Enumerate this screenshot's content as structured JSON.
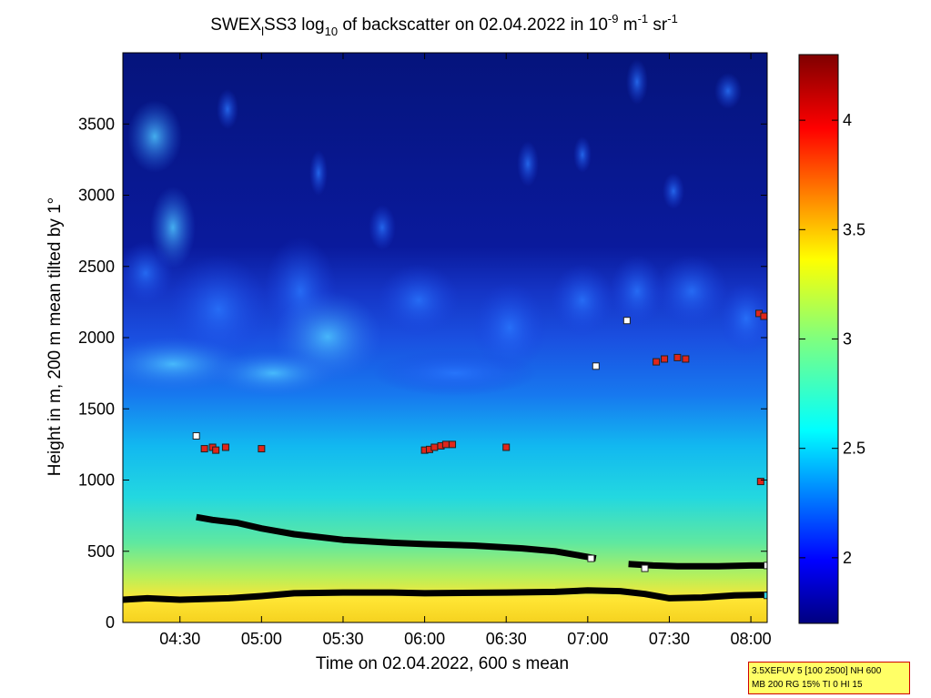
{
  "chart_data": {
    "type": "heatmap",
    "title_parts": {
      "pre": "SWEX",
      "sub1": "l",
      "mid": "SS3 log",
      "sub2": "10",
      "post": " of backscatter on 02.04.2022 in 10",
      "sup1": "-9",
      "unit_m": " m",
      "sup2": "-1",
      "unit_sr": " sr",
      "sup3": "-1"
    },
    "xlabel": "Time on 02.04.2022, 600 s mean",
    "ylabel": "Height in m, 200 m mean tilted by 1°",
    "x_range_hours": [
      4.15,
      8.1
    ],
    "ylim": [
      0,
      4000
    ],
    "x_ticks": [
      {
        "label": "04:30",
        "value": 4.5
      },
      {
        "label": "05:00",
        "value": 5.0
      },
      {
        "label": "05:30",
        "value": 5.5
      },
      {
        "label": "06:00",
        "value": 6.0
      },
      {
        "label": "06:30",
        "value": 6.5
      },
      {
        "label": "07:00",
        "value": 7.0
      },
      {
        "label": "07:30",
        "value": 7.5
      },
      {
        "label": "08:00",
        "value": 8.0
      }
    ],
    "y_ticks": [
      {
        "label": "0",
        "value": 0
      },
      {
        "label": "500",
        "value": 500
      },
      {
        "label": "1000",
        "value": 1000
      },
      {
        "label": "1500",
        "value": 1500
      },
      {
        "label": "2000",
        "value": 2000
      },
      {
        "label": "2500",
        "value": 2500
      },
      {
        "label": "3000",
        "value": 3000
      },
      {
        "label": "3500",
        "value": 3500
      }
    ],
    "colorbar": {
      "range": [
        1.7,
        4.3
      ],
      "ticks": [
        {
          "label": "2",
          "value": 2.0
        },
        {
          "label": "2.5",
          "value": 2.5
        },
        {
          "label": "3",
          "value": 3.0
        },
        {
          "label": "3.5",
          "value": 3.5
        },
        {
          "label": "4",
          "value": 4.0
        }
      ]
    },
    "layer_lines": [
      {
        "name": "surface",
        "points": [
          [
            4.15,
            160
          ],
          [
            4.3,
            170
          ],
          [
            4.5,
            160
          ],
          [
            4.8,
            170
          ],
          [
            5.0,
            185
          ],
          [
            5.2,
            205
          ],
          [
            5.5,
            210
          ],
          [
            5.8,
            210
          ],
          [
            6.0,
            205
          ],
          [
            6.5,
            210
          ],
          [
            6.8,
            215
          ],
          [
            7.0,
            225
          ],
          [
            7.2,
            220
          ],
          [
            7.35,
            200
          ],
          [
            7.5,
            170
          ],
          [
            7.7,
            175
          ],
          [
            7.9,
            190
          ],
          [
            8.1,
            195
          ]
        ]
      },
      {
        "name": "upper-segment-1",
        "points": [
          [
            4.6,
            740
          ],
          [
            4.7,
            720
          ],
          [
            4.85,
            700
          ],
          [
            5.0,
            660
          ],
          [
            5.2,
            620
          ],
          [
            5.5,
            580
          ],
          [
            5.8,
            560
          ],
          [
            6.0,
            550
          ],
          [
            6.3,
            540
          ],
          [
            6.6,
            520
          ],
          [
            6.8,
            500
          ],
          [
            6.95,
            470
          ],
          [
            7.05,
            450
          ]
        ]
      },
      {
        "name": "upper-segment-2",
        "points": [
          [
            7.25,
            410
          ],
          [
            7.4,
            400
          ],
          [
            7.55,
            395
          ],
          [
            7.8,
            395
          ],
          [
            8.0,
            400
          ],
          [
            8.1,
            400
          ]
        ]
      }
    ],
    "red_markers": [
      [
        4.65,
        1220
      ],
      [
        4.7,
        1230
      ],
      [
        4.72,
        1210
      ],
      [
        4.78,
        1230
      ],
      [
        5.0,
        1220
      ],
      [
        6.0,
        1210
      ],
      [
        6.03,
        1215
      ],
      [
        6.06,
        1230
      ],
      [
        6.1,
        1240
      ],
      [
        6.13,
        1250
      ],
      [
        6.17,
        1250
      ],
      [
        6.5,
        1230
      ],
      [
        7.42,
        1830
      ],
      [
        7.47,
        1850
      ],
      [
        7.55,
        1860
      ],
      [
        7.6,
        1850
      ],
      [
        8.05,
        2170
      ],
      [
        8.08,
        2150
      ],
      [
        8.06,
        990
      ]
    ],
    "white_markers": [
      [
        4.6,
        1310
      ],
      [
        7.05,
        1800
      ],
      [
        7.24,
        2120
      ],
      [
        7.35,
        380
      ],
      [
        7.02,
        450
      ],
      [
        8.1,
        400
      ]
    ],
    "cyan_markers": [
      [
        8.1,
        190
      ]
    ]
  },
  "info_box": {
    "line1": "3.5XEFUV 5 [100 2500] NH 600",
    "line2": "MB 200 RG 15% TI 0 HI 15"
  }
}
